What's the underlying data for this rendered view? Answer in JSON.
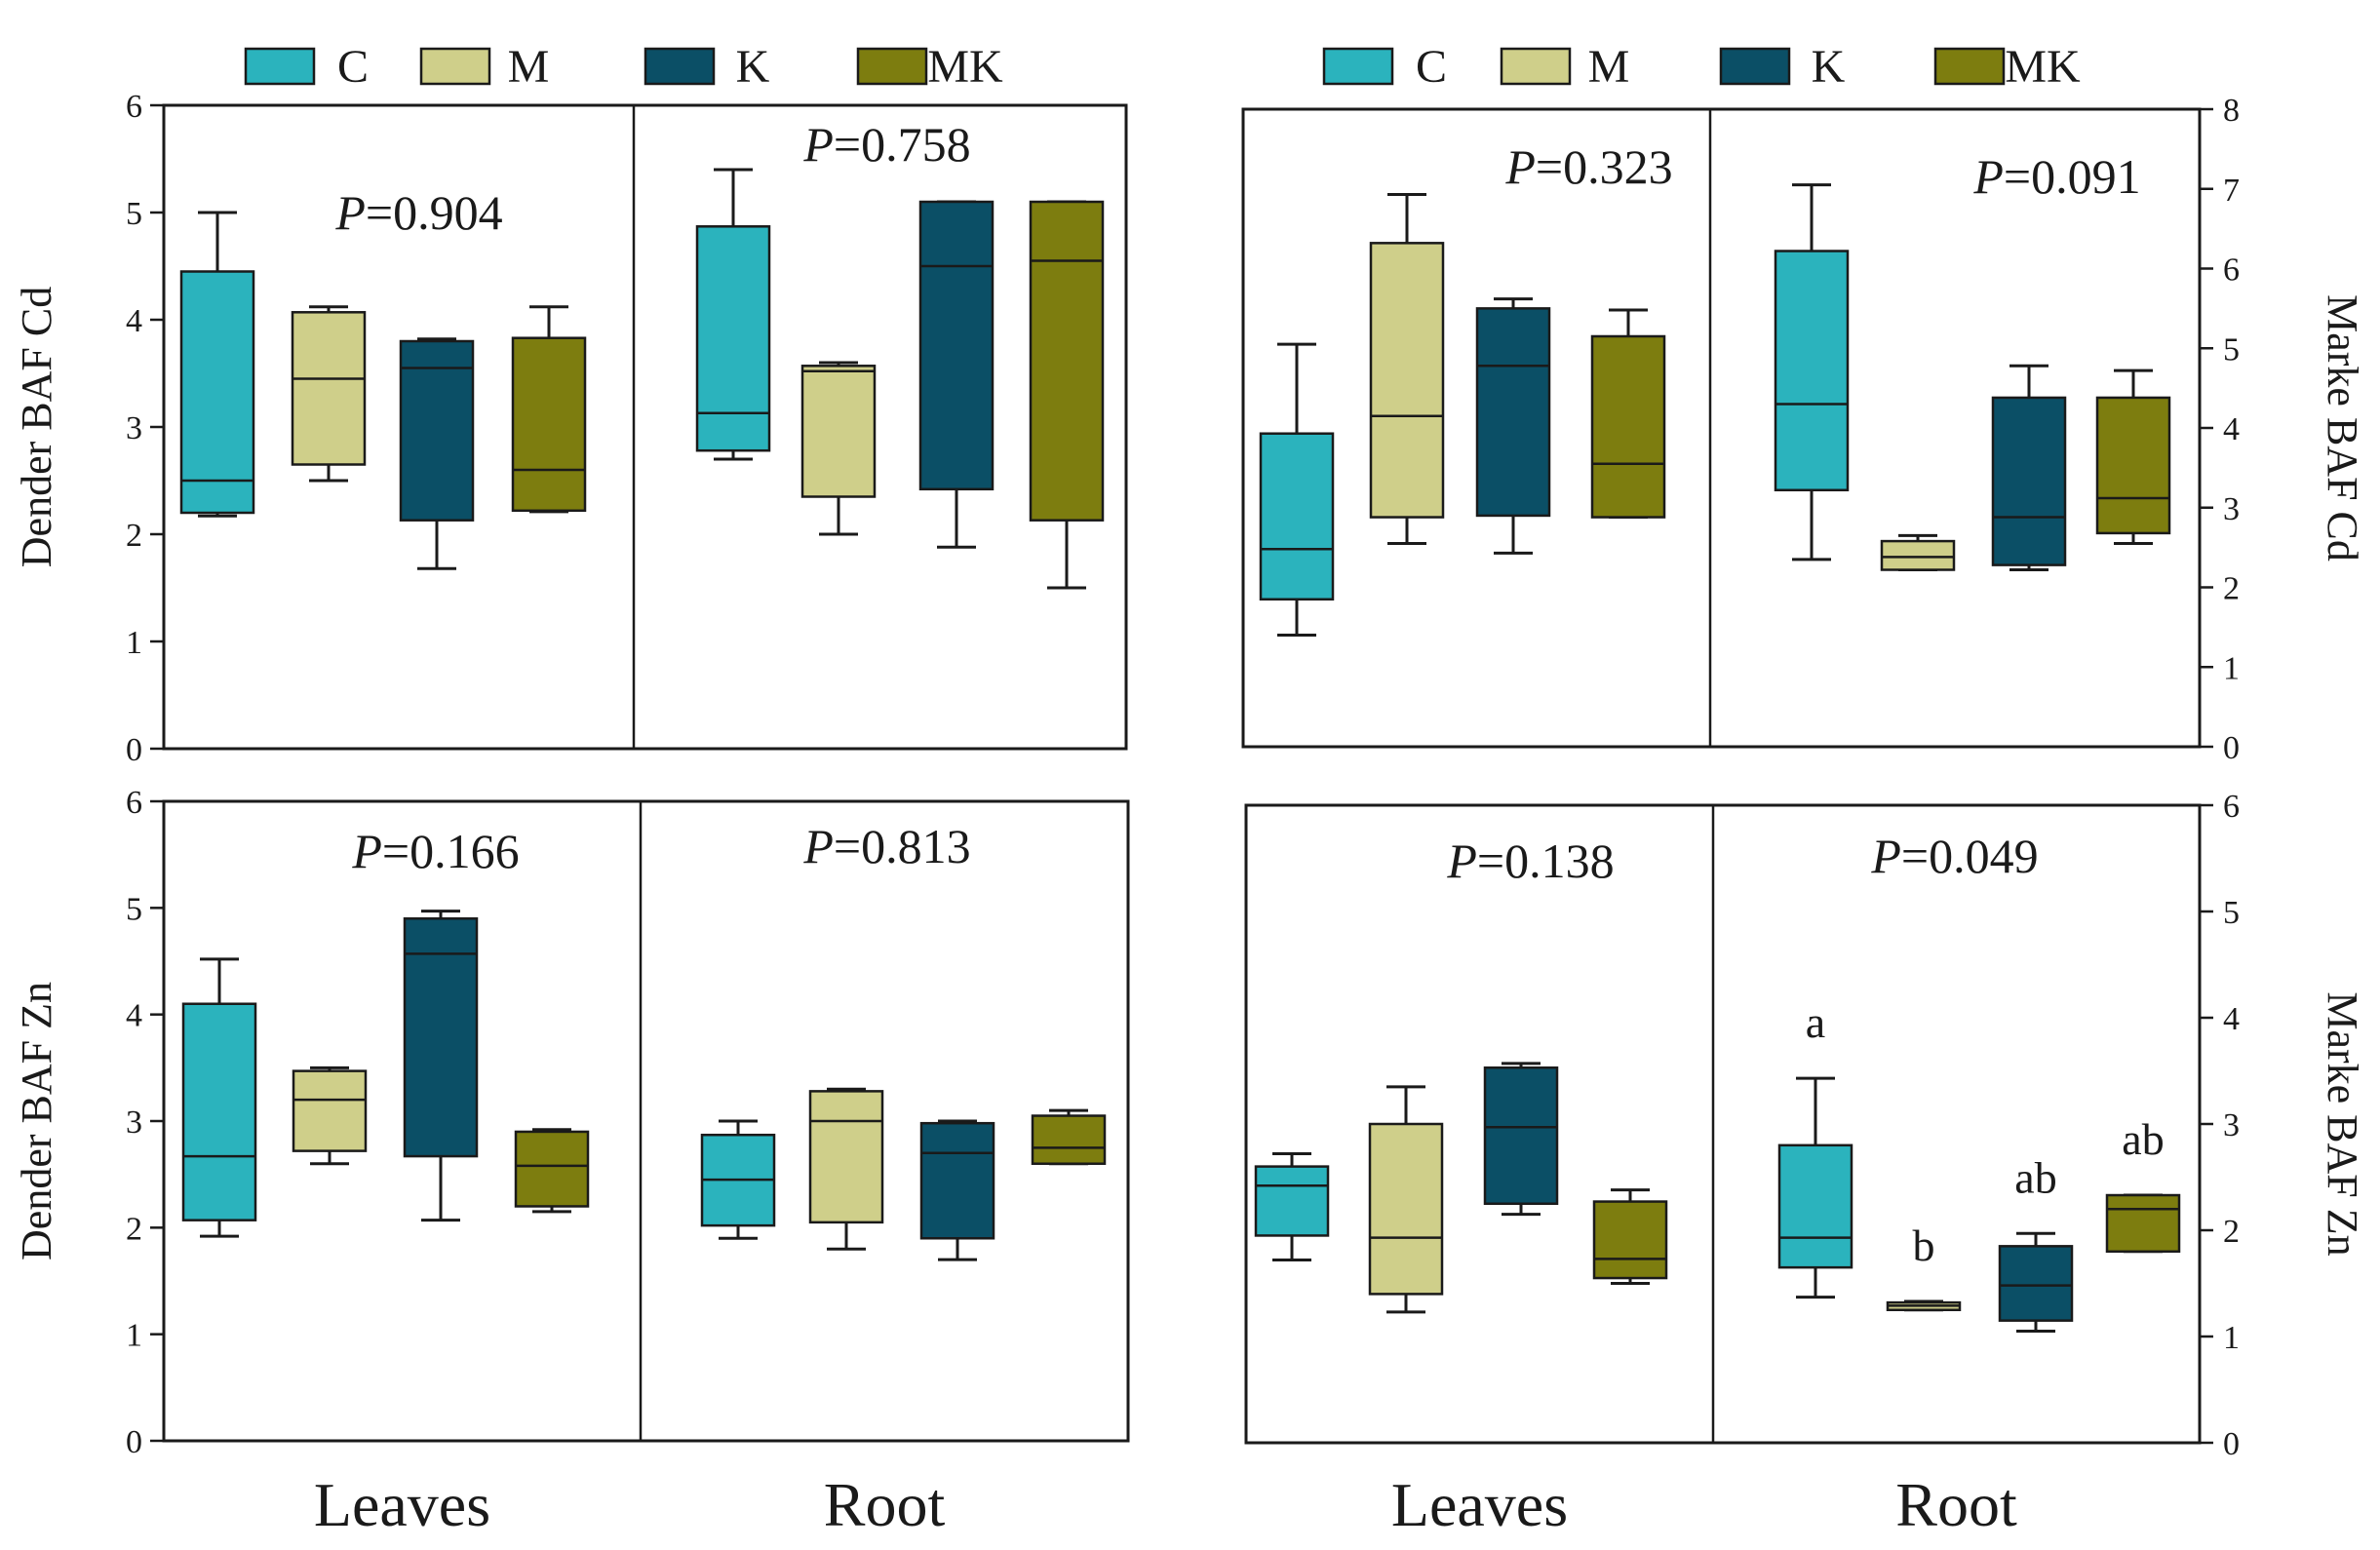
{
  "legend": [
    {
      "label": "C",
      "color": "#2bb3bd"
    },
    {
      "label": "M",
      "color": "#cfcf8a"
    },
    {
      "label": "K",
      "color": "#0b4f66"
    },
    {
      "label": "MK",
      "color": "#7d7d0f"
    }
  ],
  "chart_data": [
    {
      "type": "box",
      "panel": "top-left",
      "ylabel": "Dender BAF Cd",
      "y_axis_side": "left",
      "ylim": [
        0,
        6
      ],
      "yticks": [
        0,
        1,
        2,
        3,
        4,
        5,
        6
      ],
      "groups": [
        {
          "name": "Leaves",
          "p_value": "0.904",
          "boxes": [
            {
              "series": "C",
              "min": 2.17,
              "q1": 2.2,
              "median": 2.5,
              "q3": 4.45,
              "max": 5.0,
              "letter": ""
            },
            {
              "series": "M",
              "min": 2.5,
              "q1": 2.65,
              "median": 3.45,
              "q3": 4.07,
              "max": 4.12,
              "letter": ""
            },
            {
              "series": "K",
              "min": 1.68,
              "q1": 2.13,
              "median": 3.55,
              "q3": 3.8,
              "max": 3.82,
              "letter": ""
            },
            {
              "series": "MK",
              "min": 2.21,
              "q1": 2.22,
              "median": 2.6,
              "q3": 3.83,
              "max": 4.12,
              "letter": ""
            }
          ]
        },
        {
          "name": "Root",
          "p_value": "0.758",
          "boxes": [
            {
              "series": "C",
              "min": 2.7,
              "q1": 2.78,
              "median": 3.13,
              "q3": 4.87,
              "max": 5.4,
              "letter": ""
            },
            {
              "series": "M",
              "min": 2.0,
              "q1": 2.35,
              "median": 3.52,
              "q3": 3.57,
              "max": 3.6,
              "letter": ""
            },
            {
              "series": "K",
              "min": 1.88,
              "q1": 2.42,
              "median": 4.5,
              "q3": 5.1,
              "max": 5.1,
              "letter": ""
            },
            {
              "series": "MK",
              "min": 1.5,
              "q1": 2.13,
              "median": 4.55,
              "q3": 5.1,
              "max": 5.1,
              "letter": ""
            }
          ]
        }
      ]
    },
    {
      "type": "box",
      "panel": "top-right",
      "ylabel": "Marke BAF Cd",
      "y_axis_side": "right",
      "ylim": [
        0,
        8
      ],
      "yticks": [
        0,
        1,
        2,
        3,
        4,
        5,
        6,
        7,
        8
      ],
      "groups": [
        {
          "name": "Leaves",
          "p_value": "0.323",
          "boxes": [
            {
              "series": "C",
              "min": 1.4,
              "q1": 1.85,
              "median": 2.48,
              "q3": 3.93,
              "max": 5.05,
              "letter": ""
            },
            {
              "series": "M",
              "min": 2.55,
              "q1": 2.88,
              "median": 4.15,
              "q3": 6.32,
              "max": 6.93,
              "letter": ""
            },
            {
              "series": "K",
              "min": 2.43,
              "q1": 2.9,
              "median": 4.78,
              "q3": 5.5,
              "max": 5.62,
              "letter": ""
            },
            {
              "series": "MK",
              "min": 2.88,
              "q1": 2.88,
              "median": 3.55,
              "q3": 5.15,
              "max": 5.48,
              "letter": ""
            }
          ]
        },
        {
          "name": "Root",
          "p_value": "0.091",
          "boxes": [
            {
              "series": "C",
              "min": 2.35,
              "q1": 3.22,
              "median": 4.3,
              "q3": 6.22,
              "max": 7.05,
              "letter": ""
            },
            {
              "series": "M",
              "min": 2.22,
              "q1": 2.22,
              "median": 2.38,
              "q3": 2.58,
              "max": 2.65,
              "letter": ""
            },
            {
              "series": "K",
              "min": 2.22,
              "q1": 2.28,
              "median": 2.88,
              "q3": 4.38,
              "max": 4.78,
              "letter": ""
            },
            {
              "series": "MK",
              "min": 2.55,
              "q1": 2.68,
              "median": 3.12,
              "q3": 4.38,
              "max": 4.72,
              "letter": ""
            }
          ]
        }
      ]
    },
    {
      "type": "box",
      "panel": "bottom-left",
      "ylabel": "Dender BAF Zn",
      "y_axis_side": "left",
      "xlabel_groups": true,
      "ylim": [
        0,
        6
      ],
      "yticks": [
        0,
        1,
        2,
        3,
        4,
        5,
        6
      ],
      "groups": [
        {
          "name": "Leaves",
          "p_value": "0.166",
          "boxes": [
            {
              "series": "C",
              "min": 1.92,
              "q1": 2.07,
              "median": 2.67,
              "q3": 4.1,
              "max": 4.52,
              "letter": ""
            },
            {
              "series": "M",
              "min": 2.6,
              "q1": 2.72,
              "median": 3.2,
              "q3": 3.47,
              "max": 3.5,
              "letter": ""
            },
            {
              "series": "K",
              "min": 2.07,
              "q1": 2.67,
              "median": 4.57,
              "q3": 4.9,
              "max": 4.97,
              "letter": ""
            },
            {
              "series": "MK",
              "min": 2.15,
              "q1": 2.2,
              "median": 2.58,
              "q3": 2.9,
              "max": 2.92,
              "letter": ""
            }
          ]
        },
        {
          "name": "Root",
          "p_value": "0.813",
          "boxes": [
            {
              "series": "C",
              "min": 1.9,
              "q1": 2.02,
              "median": 2.45,
              "q3": 2.87,
              "max": 3.0,
              "letter": ""
            },
            {
              "series": "M",
              "min": 1.8,
              "q1": 2.05,
              "median": 3.0,
              "q3": 3.28,
              "max": 3.3,
              "letter": ""
            },
            {
              "series": "K",
              "min": 1.7,
              "q1": 1.9,
              "median": 2.7,
              "q3": 2.98,
              "max": 3.0,
              "letter": ""
            },
            {
              "series": "MK",
              "min": 2.6,
              "q1": 2.6,
              "median": 2.75,
              "q3": 3.05,
              "max": 3.1,
              "letter": ""
            }
          ]
        }
      ]
    },
    {
      "type": "box",
      "panel": "bottom-right",
      "ylabel": "Marke BAF Zn",
      "y_axis_side": "right",
      "xlabel_groups": true,
      "ylim": [
        0,
        6
      ],
      "yticks": [
        0,
        1,
        2,
        3,
        4,
        5,
        6
      ],
      "groups": [
        {
          "name": "Leaves",
          "p_value": "0.138",
          "boxes": [
            {
              "series": "C",
              "min": 1.72,
              "q1": 1.95,
              "median": 2.42,
              "q3": 2.6,
              "max": 2.72,
              "letter": ""
            },
            {
              "series": "M",
              "min": 1.23,
              "q1": 1.4,
              "median": 1.93,
              "q3": 3.0,
              "max": 3.35,
              "letter": ""
            },
            {
              "series": "K",
              "min": 2.15,
              "q1": 2.25,
              "median": 2.97,
              "q3": 3.53,
              "max": 3.57,
              "letter": ""
            },
            {
              "series": "MK",
              "min": 1.5,
              "q1": 1.55,
              "median": 1.73,
              "q3": 2.27,
              "max": 2.38,
              "letter": ""
            }
          ]
        },
        {
          "name": "Root",
          "p_value": "0.049",
          "boxes": [
            {
              "series": "C",
              "min": 1.37,
              "q1": 1.65,
              "median": 1.93,
              "q3": 2.8,
              "max": 3.43,
              "letter": "a"
            },
            {
              "series": "M",
              "min": 1.25,
              "q1": 1.25,
              "median": 1.29,
              "q3": 1.32,
              "max": 1.33,
              "letter": "b"
            },
            {
              "series": "K",
              "min": 1.05,
              "q1": 1.15,
              "median": 1.48,
              "q3": 1.85,
              "max": 1.97,
              "letter": "ab"
            },
            {
              "series": "MK",
              "min": 1.8,
              "q1": 1.8,
              "median": 2.2,
              "q3": 2.33,
              "max": 2.33,
              "letter": "ab"
            }
          ]
        }
      ]
    }
  ]
}
